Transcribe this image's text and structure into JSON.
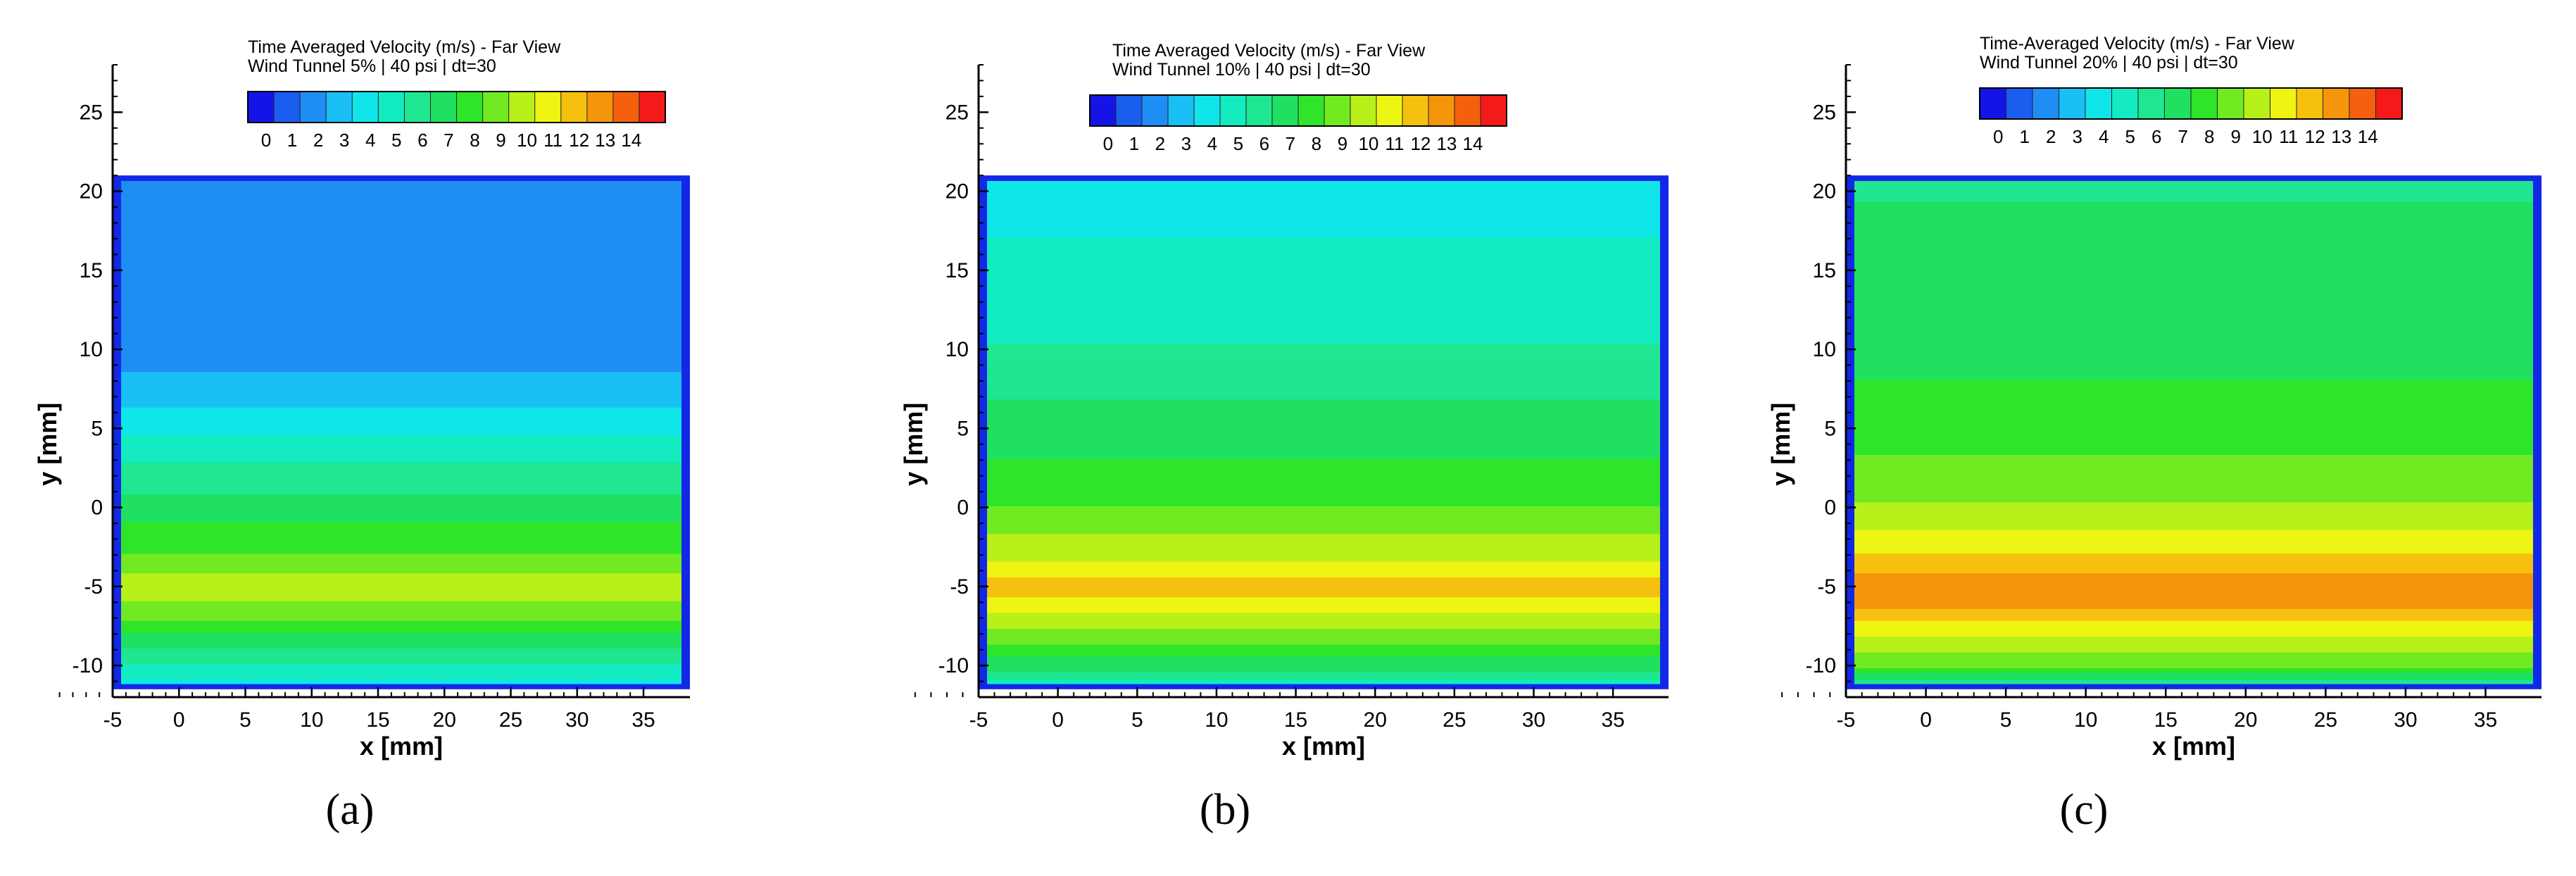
{
  "colors": {
    "scale": [
      "#1414e6",
      "#1a5ef0",
      "#1e8ef5",
      "#19bff5",
      "#10e6ea",
      "#12ecc0",
      "#1ee691",
      "#1fe060",
      "#2ee52a",
      "#71ea22",
      "#b8f01a",
      "#eef512",
      "#f5c00e",
      "#f5950c",
      "#f5600e",
      "#f51a1a"
    ],
    "border": "#1228e6"
  },
  "colorbar_labels": [
    "0",
    "1",
    "2",
    "3",
    "4",
    "5",
    "6",
    "7",
    "8",
    "9",
    "10",
    "11",
    "12",
    "13",
    "14"
  ],
  "chart_data": [
    {
      "type": "heatmap",
      "panel_label": "(a)",
      "title": "Time Averaged Velocity (m/s) - Far View",
      "subtitle": "Wind Tunnel 5% | 40 psi | dt=30",
      "xlabel": "x [mm]",
      "ylabel": "y [mm]",
      "xlim": [
        -5,
        38.5
      ],
      "ylim": [
        -12,
        28
      ],
      "xticks": [
        -5,
        0,
        5,
        10,
        15,
        20,
        25,
        30,
        35
      ],
      "yticks": [
        -10,
        -5,
        0,
        5,
        10,
        15,
        20,
        25
      ],
      "colorbar": {
        "min": 0,
        "max": 14,
        "levels": 16
      },
      "field_extent": {
        "x": [
          -5,
          38.5
        ],
        "y": [
          -11.5,
          21
        ]
      },
      "profile": [
        {
          "y": -11.5,
          "v": 0
        },
        {
          "y": -11,
          "v": 4
        },
        {
          "y": -10,
          "v": 5
        },
        {
          "y": -8.5,
          "v": 6.5
        },
        {
          "y": -7,
          "v": 8
        },
        {
          "y": -5,
          "v": 9.5
        },
        {
          "y": -3,
          "v": 8
        },
        {
          "y": -1,
          "v": 7
        },
        {
          "y": 1,
          "v": 6
        },
        {
          "y": 3,
          "v": 5
        },
        {
          "y": 5,
          "v": 4
        },
        {
          "y": 7,
          "v": 3
        },
        {
          "y": 9,
          "v": 2.2
        },
        {
          "y": 11,
          "v": 1.6
        },
        {
          "y": 21,
          "v": 1.4
        }
      ]
    },
    {
      "type": "heatmap",
      "panel_label": "(b)",
      "title": "Time Averaged Velocity (m/s) - Far View",
      "subtitle": "Wind Tunnel 10% | 40 psi | dt=30",
      "xlabel": "x [mm]",
      "ylabel": "y [mm]",
      "xlim": [
        -5,
        38.5
      ],
      "ylim": [
        -12,
        28
      ],
      "xticks": [
        -5,
        0,
        5,
        10,
        15,
        20,
        25,
        30,
        35
      ],
      "yticks": [
        -10,
        -5,
        0,
        5,
        10,
        15,
        20,
        25
      ],
      "colorbar": {
        "min": 0,
        "max": 14,
        "levels": 16
      },
      "field_extent": {
        "x": [
          -5,
          38.5
        ],
        "y": [
          -11.5,
          21
        ]
      },
      "profile": [
        {
          "y": -11.5,
          "v": 0
        },
        {
          "y": -11,
          "v": 5
        },
        {
          "y": -10,
          "v": 6.5
        },
        {
          "y": -8.5,
          "v": 8
        },
        {
          "y": -7,
          "v": 9.5
        },
        {
          "y": -5,
          "v": 11.2
        },
        {
          "y": -3,
          "v": 9.5
        },
        {
          "y": -1,
          "v": 8.5
        },
        {
          "y": 1,
          "v": 7.5
        },
        {
          "y": 3,
          "v": 7
        },
        {
          "y": 5,
          "v": 6.5
        },
        {
          "y": 7,
          "v": 6
        },
        {
          "y": 9,
          "v": 5.5
        },
        {
          "y": 11,
          "v": 5
        },
        {
          "y": 13,
          "v": 4.3
        },
        {
          "y": 21,
          "v": 4.1
        }
      ]
    },
    {
      "type": "heatmap",
      "panel_label": "(c)",
      "title": "Time-Averaged Velocity (m/s) - Far View",
      "subtitle": "Wind Tunnel 20% | 40 psi | dt=30",
      "xlabel": "x [mm]",
      "ylabel": "y [mm]",
      "xlim": [
        -5,
        38.5
      ],
      "ylim": [
        -12,
        28
      ],
      "xticks": [
        -5,
        0,
        5,
        10,
        15,
        20,
        25,
        30,
        35
      ],
      "yticks": [
        -10,
        -5,
        0,
        5,
        10,
        15,
        20,
        25
      ],
      "colorbar": {
        "min": 0,
        "max": 14,
        "levels": 16
      },
      "field_extent": {
        "x": [
          -5,
          38.5
        ],
        "y": [
          -11.5,
          21
        ]
      },
      "profile": [
        {
          "y": -11.5,
          "v": 0
        },
        {
          "y": -11,
          "v": 6
        },
        {
          "y": -10,
          "v": 8
        },
        {
          "y": -8.5,
          "v": 9.5
        },
        {
          "y": -7,
          "v": 11
        },
        {
          "y": -5.5,
          "v": 12.5
        },
        {
          "y": -4,
          "v": 11.5
        },
        {
          "y": -2.5,
          "v": 10.5
        },
        {
          "y": -1,
          "v": 9.5
        },
        {
          "y": 1,
          "v": 8.5
        },
        {
          "y": 3,
          "v": 8
        },
        {
          "y": 5,
          "v": 7.5
        },
        {
          "y": 8,
          "v": 7
        },
        {
          "y": 12,
          "v": 6.6
        },
        {
          "y": 16,
          "v": 6.2
        },
        {
          "y": 21,
          "v": 6
        }
      ]
    }
  ]
}
